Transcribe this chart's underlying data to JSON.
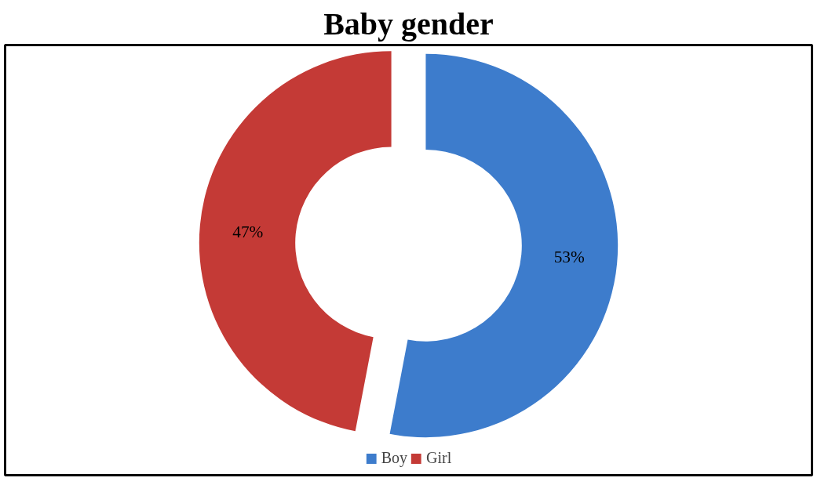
{
  "chart_data": {
    "type": "donut",
    "title": "Baby gender",
    "categories": [
      "Boy",
      "Girl"
    ],
    "values": [
      53,
      47
    ],
    "colors": [
      "#3d7ccc",
      "#c43a36"
    ],
    "value_labels": [
      "53%",
      "47%"
    ],
    "legend": "bottom"
  }
}
